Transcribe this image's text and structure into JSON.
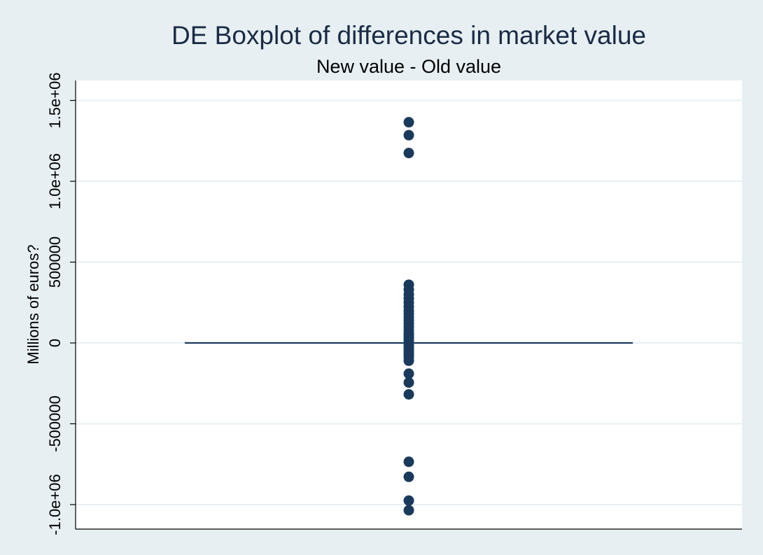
{
  "chart_data": {
    "type": "box",
    "title": "DE Boxplot of differences in market value",
    "subtitle": "New value - Old value",
    "ylabel": "Millions of euros?",
    "xlabel": "",
    "ylim": [
      -1150000,
      1620000
    ],
    "yticks": [
      {
        "value": -1000000,
        "label": "-1.0e+06"
      },
      {
        "value": -500000,
        "label": "-500000"
      },
      {
        "value": 0,
        "label": "0"
      },
      {
        "value": 500000,
        "label": "500000"
      },
      {
        "value": 1000000,
        "label": "1.0e+06"
      },
      {
        "value": 1500000,
        "label": "1.5e+06"
      }
    ],
    "grid": true,
    "box": {
      "q1": 0,
      "median": 0,
      "q3": 0,
      "whisker_low": 0,
      "whisker_high": 0
    },
    "outliers": [
      1365000,
      1285000,
      1175000,
      360000,
      330000,
      300000,
      275000,
      250000,
      225000,
      200000,
      180000,
      160000,
      140000,
      120000,
      100000,
      80000,
      60000,
      45000,
      30000,
      15000,
      -15000,
      -30000,
      -45000,
      -60000,
      -75000,
      -90000,
      -110000,
      -190000,
      -245000,
      -318000,
      -735000,
      -828000,
      -975000,
      -1035000
    ],
    "colors": {
      "background": "#e7eff2",
      "plot_background": "#ffffff",
      "marker": "#1a3a5c",
      "grid": "#e7eff2",
      "title": "#1a2b45"
    }
  }
}
